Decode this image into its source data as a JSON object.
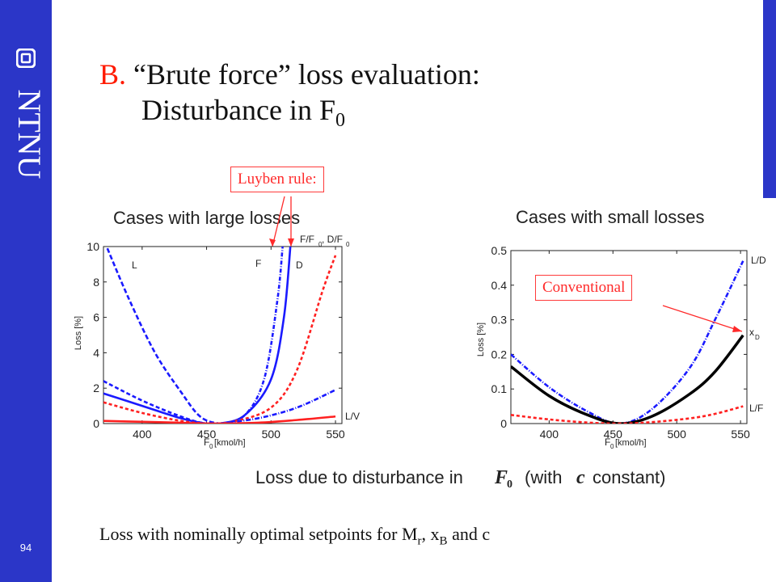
{
  "slide": {
    "page_number": "94",
    "logo_text": "NTNU",
    "title_prefix": "B.",
    "title_line1": "“Brute force”  loss evaluation:",
    "title_line2": "Disturbance in F",
    "title_line2_sub": "0",
    "callout_luyben": "Luyben rule:",
    "callout_conventional": "Conventional",
    "caption_main": "Loss due to disturbance in",
    "caption_sym": "F",
    "caption_sym_sub": "0",
    "caption_mid": "(with",
    "caption_c": "c",
    "caption_end": "constant)",
    "bottom_text": {
      "a": "Loss with nominally optimal setpoints for M",
      "a_sub": "r",
      "b": ", x",
      "b_sub": "B",
      "c": " and c"
    }
  },
  "chart_data": [
    {
      "type": "line",
      "title": "Cases with large losses",
      "xlabel": "F",
      "xlabel_sub": "0",
      "xlabel_unit": "[kmol/h]",
      "ylabel": "Loss [%]",
      "xlim": [
        370,
        555
      ],
      "ylim": [
        0,
        10
      ],
      "xticks": [
        "400",
        "450",
        "500",
        "550"
      ],
      "yticks": [
        "0",
        "2",
        "4",
        "6",
        "8",
        "10"
      ],
      "labels": [
        "L",
        "F",
        "D",
        "F/F",
        "0",
        ", D/F",
        "0",
        "L/V"
      ],
      "series": [
        {
          "name": "L",
          "color": "#1a1aff",
          "dash": "6,3",
          "x": [
            373,
            390,
            410,
            430,
            445,
            460,
            480
          ],
          "y": [
            9.9,
            7.0,
            4.0,
            1.8,
            0.4,
            0.0,
            0.0
          ]
        },
        {
          "name": "F",
          "color": "#1a1aff",
          "dash": "5,2,1,2",
          "x": [
            440,
            460,
            480,
            495,
            505,
            509
          ],
          "y": [
            0.0,
            0.0,
            0.5,
            2.6,
            7.0,
            10.0
          ]
        },
        {
          "name": "D",
          "color": "#1a1aff",
          "dash": "",
          "x": [
            440,
            460,
            480,
            500,
            510,
            515
          ],
          "y": [
            0.0,
            0.0,
            0.5,
            2.5,
            6.0,
            10.0
          ]
        },
        {
          "name": "",
          "color": "#ff2020",
          "dash": "4,3",
          "x": [
            450,
            470,
            500,
            520,
            540,
            550
          ],
          "y": [
            0.0,
            0.1,
            0.9,
            3.0,
            7.5,
            9.5
          ]
        },
        {
          "name": "",
          "color": "#1a1aff",
          "dash": "5,3",
          "x": [
            370,
            400,
            430,
            450,
            470
          ],
          "y": [
            2.4,
            1.3,
            0.4,
            0.0,
            0.0
          ]
        },
        {
          "name": "",
          "color": "#1a1aff",
          "dash": "",
          "x": [
            370,
            400,
            430,
            450,
            470
          ],
          "y": [
            1.7,
            1.0,
            0.3,
            0.0,
            0.0
          ]
        },
        {
          "name": "L/V",
          "color": "#1a1aff",
          "dash": "6,2,1,2",
          "x": [
            460,
            490,
            520,
            550
          ],
          "y": [
            0.0,
            0.3,
            0.9,
            1.9
          ]
        },
        {
          "name": "",
          "color": "#ff2020",
          "dash": "4,3",
          "x": [
            370,
            400,
            430,
            450,
            470
          ],
          "y": [
            1.2,
            0.6,
            0.15,
            0.0,
            0.0
          ]
        },
        {
          "name": "",
          "color": "#ff2020",
          "dash": "",
          "x": [
            370,
            400,
            430,
            450,
            490,
            520,
            550
          ],
          "y": [
            0.15,
            0.1,
            0.05,
            0.0,
            0.05,
            0.2,
            0.4
          ]
        }
      ]
    },
    {
      "type": "line",
      "title": "Cases with small losses",
      "xlabel": "F",
      "xlabel_sub": "0",
      "xlabel_unit": "[kmol/h]",
      "ylabel": "Loss [%]",
      "xlim": [
        370,
        555
      ],
      "ylim": [
        0,
        0.5
      ],
      "xticks": [
        "400",
        "450",
        "500",
        "550"
      ],
      "yticks": [
        "0",
        "0.1",
        "0.2",
        "0.3",
        "0.4",
        "0.5"
      ],
      "labels": [
        "L/D",
        "x",
        "D",
        "L/F"
      ],
      "series": [
        {
          "name": "L/D",
          "color": "#1a1aff",
          "dash": "6,2,1,2",
          "x": [
            370,
            400,
            430,
            455,
            480,
            510,
            530,
            552
          ],
          "y": [
            0.2,
            0.105,
            0.035,
            0.0,
            0.04,
            0.16,
            0.3,
            0.47
          ]
        },
        {
          "name": "x_D",
          "color": "#000000",
          "dash": "",
          "x": [
            370,
            400,
            430,
            455,
            480,
            510,
            530,
            552
          ],
          "y": [
            0.165,
            0.08,
            0.025,
            0.0,
            0.02,
            0.085,
            0.15,
            0.255
          ]
        },
        {
          "name": "L/F",
          "color": "#ff2020",
          "dash": "4,3",
          "x": [
            370,
            400,
            430,
            455,
            480,
            510,
            530,
            552
          ],
          "y": [
            0.025,
            0.012,
            0.003,
            0.0,
            0.004,
            0.015,
            0.028,
            0.05
          ]
        }
      ]
    }
  ]
}
